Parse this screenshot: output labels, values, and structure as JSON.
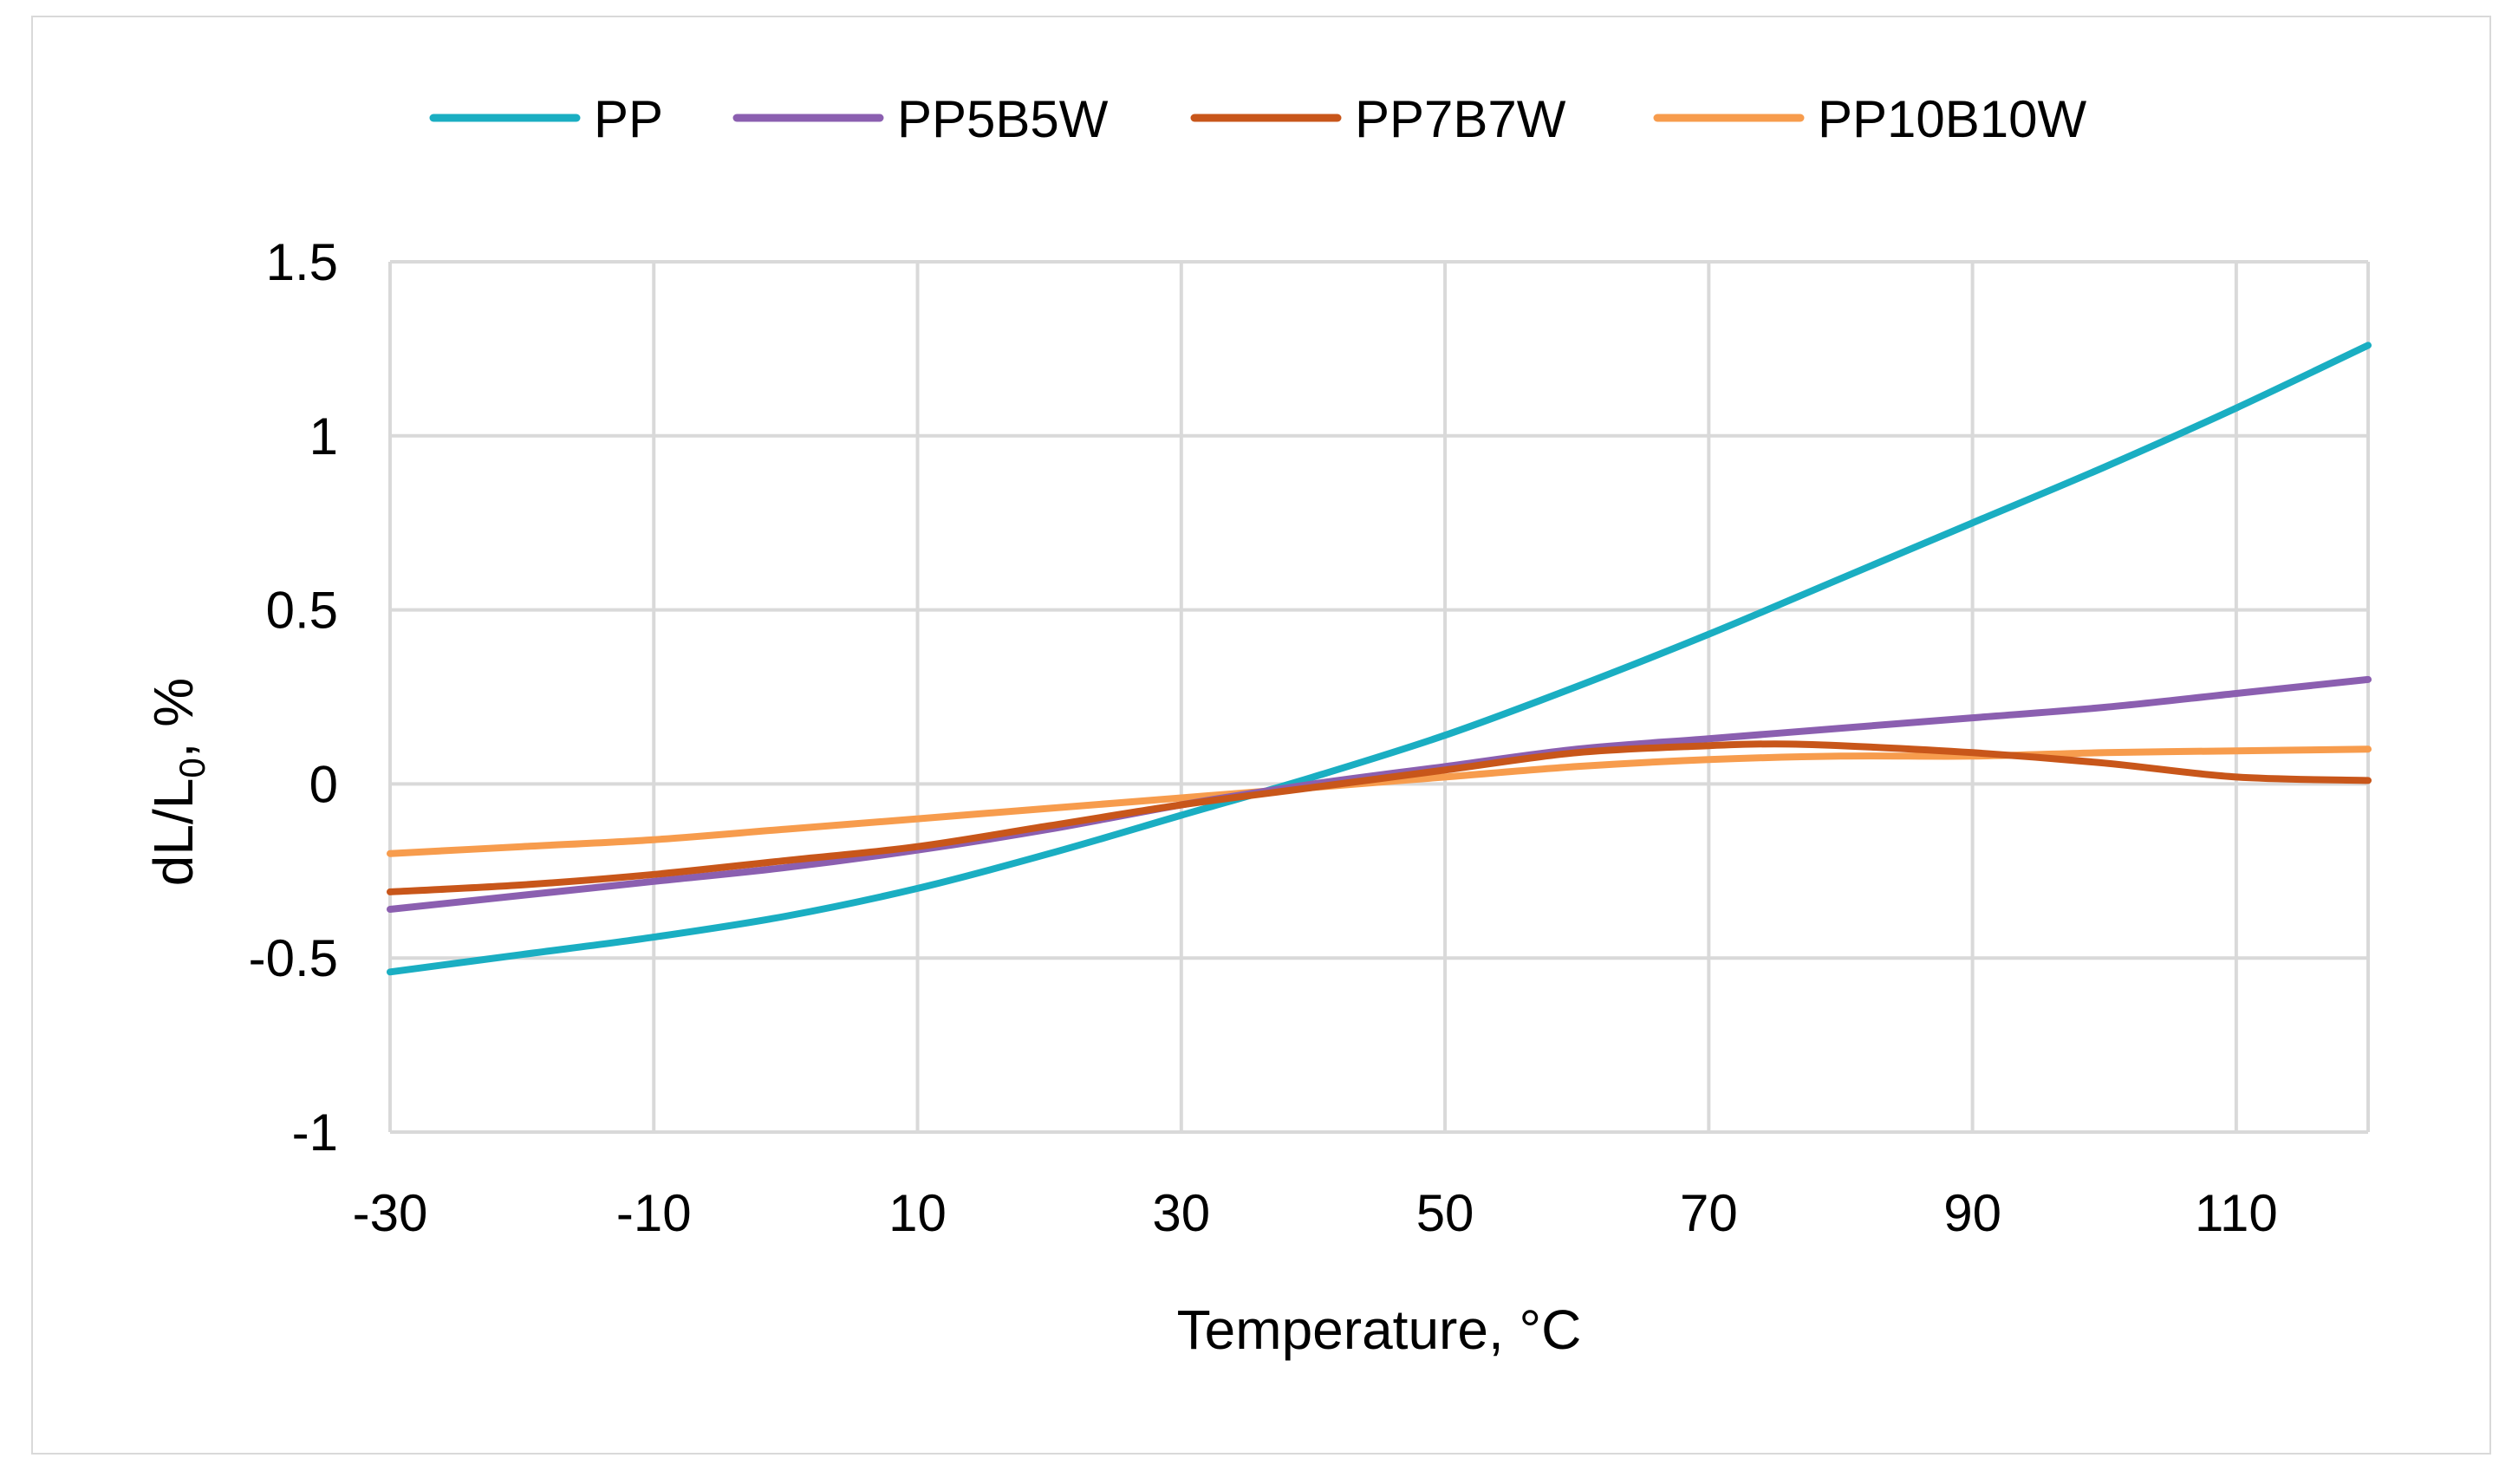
{
  "chart_data": {
    "type": "line",
    "title": "",
    "xlabel": "Temperature,  °C",
    "ylabel": {
      "main": "dL/L",
      "sub": "0",
      "suffix": ", %"
    },
    "xlim": [
      -30,
      120
    ],
    "ylim": [
      -1,
      1.5
    ],
    "x_ticks": [
      -30,
      -10,
      10,
      30,
      50,
      70,
      90,
      110
    ],
    "y_ticks": [
      -1,
      -0.5,
      0,
      0.5,
      1,
      1.5
    ],
    "grid": true,
    "legend_position": "top",
    "series": [
      {
        "name": "PP",
        "color": "#1aaec2",
        "x": [
          -30,
          -20,
          -10,
          0,
          10,
          20,
          30,
          40,
          50,
          60,
          70,
          80,
          90,
          100,
          110,
          120
        ],
        "y": [
          -0.54,
          -0.49,
          -0.44,
          -0.38,
          -0.3,
          -0.2,
          -0.09,
          0.02,
          0.14,
          0.28,
          0.43,
          0.59,
          0.75,
          0.91,
          1.08,
          1.26
        ]
      },
      {
        "name": "PP5B5W",
        "color": "#8b5fb0",
        "x": [
          -30,
          -20,
          -10,
          0,
          10,
          20,
          30,
          40,
          50,
          60,
          70,
          80,
          90,
          100,
          110,
          120
        ],
        "y": [
          -0.36,
          -0.32,
          -0.28,
          -0.24,
          -0.19,
          -0.13,
          -0.06,
          0.0,
          0.05,
          0.1,
          0.13,
          0.16,
          0.19,
          0.22,
          0.26,
          0.3
        ]
      },
      {
        "name": "PP7B7W",
        "color": "#c8561a",
        "x": [
          -30,
          -20,
          -10,
          0,
          10,
          20,
          30,
          40,
          50,
          60,
          70,
          75,
          80,
          90,
          100,
          110,
          120
        ],
        "y": [
          -0.31,
          -0.29,
          -0.26,
          -0.22,
          -0.18,
          -0.12,
          -0.06,
          -0.01,
          0.04,
          0.09,
          0.11,
          0.115,
          0.11,
          0.09,
          0.06,
          0.02,
          0.01
        ]
      },
      {
        "name": "PP10B10W",
        "color": "#f79c4d",
        "x": [
          -30,
          -20,
          -10,
          0,
          10,
          20,
          30,
          40,
          50,
          60,
          70,
          80,
          90,
          100,
          110,
          120
        ],
        "y": [
          -0.2,
          -0.18,
          -0.16,
          -0.13,
          -0.1,
          -0.07,
          -0.04,
          -0.01,
          0.02,
          0.05,
          0.07,
          0.08,
          0.08,
          0.09,
          0.095,
          0.1
        ]
      }
    ]
  }
}
